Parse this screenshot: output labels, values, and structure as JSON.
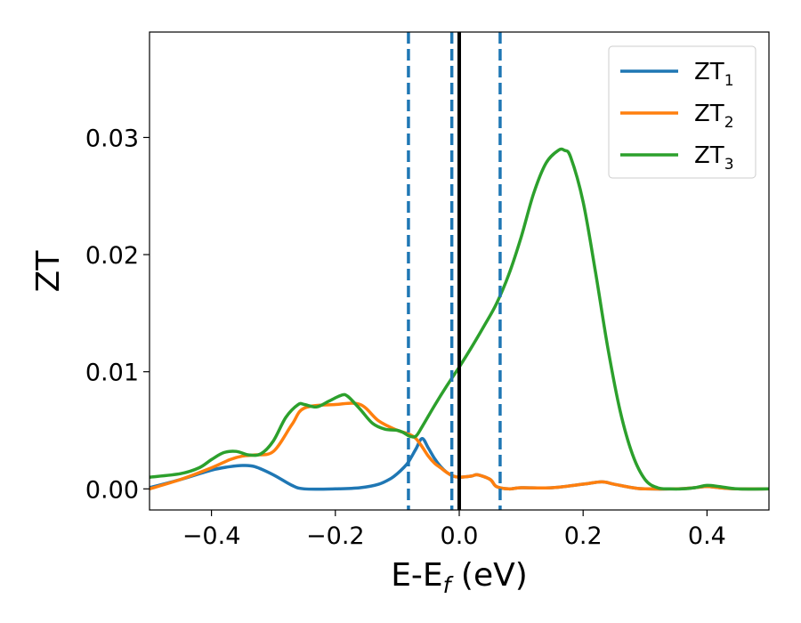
{
  "chart_data": {
    "type": "line",
    "xlabel": "E-E",
    "xlabel_sub": "f",
    "xlabel_unit": " (eV)",
    "ylabel": "ZT",
    "xlim": [
      -0.5,
      0.5
    ],
    "ylim": [
      -0.0018,
      0.039
    ],
    "xticks": [
      {
        "value": -0.4,
        "label": "−0.4"
      },
      {
        "value": -0.2,
        "label": "−0.2"
      },
      {
        "value": 0.0,
        "label": "0.0"
      },
      {
        "value": 0.2,
        "label": "0.2"
      },
      {
        "value": 0.4,
        "label": "0.4"
      }
    ],
    "yticks": [
      {
        "value": 0.0,
        "label": "0.00"
      },
      {
        "value": 0.01,
        "label": "0.01"
      },
      {
        "value": 0.02,
        "label": "0.02"
      },
      {
        "value": 0.03,
        "label": "0.03"
      }
    ],
    "grid": false,
    "legend_position": "top-right",
    "vlines": [
      {
        "x": -0.082,
        "style": "dashed",
        "color": "#1f77b4"
      },
      {
        "x": -0.012,
        "style": "dashed",
        "color": "#1f77b4"
      },
      {
        "x": 0.066,
        "style": "dashed",
        "color": "#1f77b4"
      },
      {
        "x": 0.0,
        "style": "solid",
        "color": "#000000"
      }
    ],
    "series": [
      {
        "name": "ZT",
        "sub": "1",
        "color": "#1f77b4",
        "x": [
          -0.5,
          -0.45,
          -0.4,
          -0.37,
          -0.35,
          -0.33,
          -0.3,
          -0.27,
          -0.25,
          -0.2,
          -0.16,
          -0.13,
          -0.11,
          -0.1,
          -0.09,
          -0.082,
          -0.07,
          -0.06,
          -0.05,
          -0.04,
          -0.03,
          -0.02,
          -0.01,
          0.0,
          0.02,
          0.03,
          0.05,
          0.06,
          0.08,
          0.1,
          0.15,
          0.2,
          0.23,
          0.25,
          0.28,
          0.3,
          0.35,
          0.38,
          0.4,
          0.42,
          0.45,
          0.5
        ],
        "y": [
          0.0001,
          0.0008,
          0.0016,
          0.0019,
          0.002,
          0.0019,
          0.0012,
          0.0003,
          0.0,
          0.0,
          0.0001,
          0.0004,
          0.0009,
          0.0013,
          0.0018,
          0.0023,
          0.0034,
          0.0043,
          0.0035,
          0.0026,
          0.0019,
          0.0014,
          0.0011,
          0.001,
          0.0011,
          0.0012,
          0.0008,
          0.0002,
          0.0,
          0.0001,
          0.0001,
          0.0004,
          0.0006,
          0.0004,
          0.0001,
          0.0,
          0.0,
          0.0001,
          0.0002,
          0.0001,
          0.0,
          0.0
        ]
      },
      {
        "name": "ZT",
        "sub": "2",
        "color": "#ff7f0e",
        "x": [
          -0.5,
          -0.45,
          -0.4,
          -0.37,
          -0.35,
          -0.33,
          -0.3,
          -0.27,
          -0.25,
          -0.2,
          -0.16,
          -0.13,
          -0.1,
          -0.082,
          -0.07,
          -0.06,
          -0.05,
          -0.04,
          -0.03,
          -0.02,
          -0.01,
          0.0,
          0.02,
          0.03,
          0.05,
          0.06,
          0.08,
          0.1,
          0.15,
          0.2,
          0.23,
          0.25,
          0.28,
          0.3,
          0.35,
          0.38,
          0.4,
          0.42,
          0.45,
          0.5
        ],
        "y": [
          0.0,
          0.0008,
          0.0018,
          0.0025,
          0.0028,
          0.0029,
          0.0032,
          0.0055,
          0.0069,
          0.0072,
          0.0072,
          0.0058,
          0.005,
          0.0047,
          0.0043,
          0.0036,
          0.0028,
          0.0022,
          0.0018,
          0.0014,
          0.0011,
          0.001,
          0.0011,
          0.0012,
          0.0008,
          0.0002,
          0.0,
          0.0001,
          0.0001,
          0.0004,
          0.0006,
          0.0004,
          0.0001,
          0.0,
          0.0,
          0.0001,
          0.0002,
          0.0001,
          0.0,
          0.0
        ]
      },
      {
        "name": "ZT",
        "sub": "3",
        "color": "#2ca02c",
        "x": [
          -0.5,
          -0.45,
          -0.42,
          -0.4,
          -0.38,
          -0.36,
          -0.34,
          -0.32,
          -0.3,
          -0.28,
          -0.26,
          -0.25,
          -0.23,
          -0.21,
          -0.19,
          -0.18,
          -0.16,
          -0.14,
          -0.12,
          -0.1,
          -0.09,
          -0.08,
          -0.07,
          -0.06,
          -0.04,
          -0.02,
          0.0,
          0.02,
          0.04,
          0.06,
          0.08,
          0.1,
          0.12,
          0.14,
          0.16,
          0.17,
          0.18,
          0.2,
          0.22,
          0.24,
          0.26,
          0.28,
          0.3,
          0.32,
          0.34,
          0.36,
          0.38,
          0.4,
          0.42,
          0.45,
          0.5
        ],
        "y": [
          0.001,
          0.0013,
          0.0018,
          0.0025,
          0.0031,
          0.0032,
          0.0029,
          0.003,
          0.0041,
          0.0061,
          0.0072,
          0.0072,
          0.007,
          0.0075,
          0.008,
          0.0079,
          0.0068,
          0.0056,
          0.0051,
          0.005,
          0.0048,
          0.0045,
          0.0045,
          0.0053,
          0.0071,
          0.0088,
          0.0104,
          0.0121,
          0.0139,
          0.0158,
          0.0183,
          0.0215,
          0.0252,
          0.0278,
          0.0289,
          0.0289,
          0.0283,
          0.0245,
          0.0185,
          0.012,
          0.0066,
          0.0029,
          0.0008,
          0.0001,
          0.0,
          0.0,
          0.0001,
          0.0003,
          0.0002,
          0.0,
          0.0
        ]
      }
    ]
  }
}
